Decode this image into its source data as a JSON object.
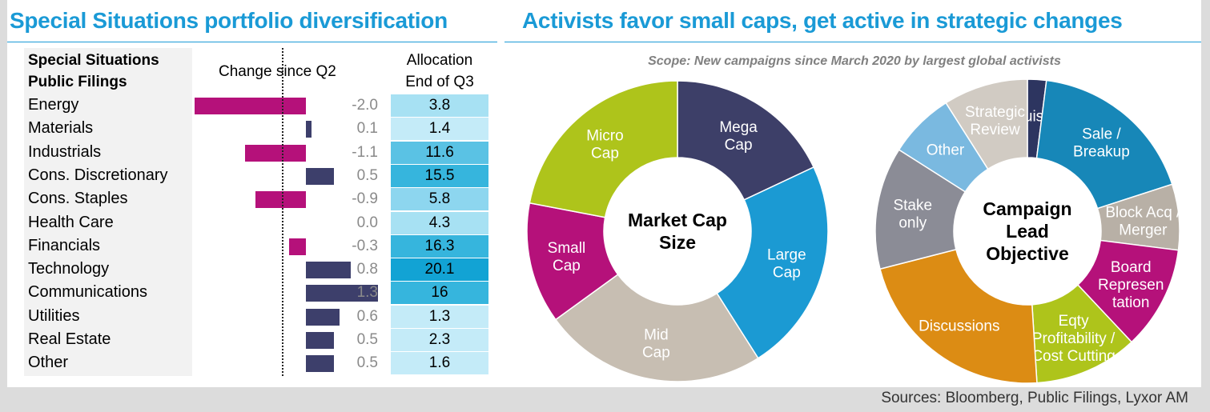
{
  "left_title": "Special Situations portfolio diversification",
  "right_title": "Activists favor small caps, get active in strategic changes",
  "sources": "Sources: Bloomberg, Public Filings, Lyxor AM",
  "colors": {
    "title": "#1a9ad6",
    "negative": "#b5117a",
    "positive": "#3d3f6b"
  },
  "chart_data": [
    {
      "type": "table",
      "headers": {
        "sector": [
          "Special Situations",
          "Public Filings"
        ],
        "change": "Change since Q2",
        "allocation": [
          "Allocation",
          "End of Q3"
        ]
      },
      "rows": [
        {
          "sector": "Energy",
          "change": -2.0,
          "change_label": "-2.0",
          "allocation": "3.8"
        },
        {
          "sector": "Materials",
          "change": 0.1,
          "change_label": "0.1",
          "allocation": "1.4"
        },
        {
          "sector": "Industrials",
          "change": -1.1,
          "change_label": "-1.1",
          "allocation": "11.6"
        },
        {
          "sector": "Cons. Discretionary",
          "change": 0.5,
          "change_label": "0.5",
          "allocation": "15.5"
        },
        {
          "sector": "Cons. Staples",
          "change": -0.9,
          "change_label": "-0.9",
          "allocation": "5.8"
        },
        {
          "sector": "Health Care",
          "change": 0.0,
          "change_label": "0.0",
          "allocation": "4.3"
        },
        {
          "sector": "Financials",
          "change": -0.3,
          "change_label": "-0.3",
          "allocation": "16.3"
        },
        {
          "sector": "Technology",
          "change": 0.8,
          "change_label": "0.8",
          "allocation": "20.1"
        },
        {
          "sector": "Communications",
          "change": 1.3,
          "change_label": "1.3",
          "allocation": "16"
        },
        {
          "sector": "Utilities",
          "change": 0.6,
          "change_label": "0.6",
          "allocation": "1.3"
        },
        {
          "sector": "Real Estate",
          "change": 0.5,
          "change_label": "0.5",
          "allocation": "2.3"
        },
        {
          "sector": "Other",
          "change": 0.5,
          "change_label": "0.5",
          "allocation": "1.6"
        }
      ]
    },
    {
      "type": "pie",
      "subtitle": "Scope: New campaigns since March 2020 by largest global activists",
      "center_label": [
        "Market Cap",
        "Size"
      ],
      "slices": [
        {
          "label": [
            "Mega",
            "Cap"
          ],
          "value": 18,
          "color": "#3d3f68"
        },
        {
          "label": [
            "Large",
            "Cap"
          ],
          "value": 23,
          "color": "#1b9ad3"
        },
        {
          "label": [
            "Mid",
            "Cap"
          ],
          "value": 24,
          "color": "#c7beb2"
        },
        {
          "label": [
            "Small",
            "Cap"
          ],
          "value": 13,
          "color": "#b5117a"
        },
        {
          "label": [
            "Micro",
            "Cap"
          ],
          "value": 22,
          "color": "#aec41b"
        }
      ]
    },
    {
      "type": "pie",
      "center_label": [
        "Campaign",
        "Lead",
        "Objective"
      ],
      "slices": [
        {
          "label": [
            "Acquisition"
          ],
          "value": 2,
          "color": "#2d3560"
        },
        {
          "label": [
            "Sale /",
            "Breakup"
          ],
          "value": 18,
          "color": "#1787b8"
        },
        {
          "label": [
            "Block Acq /",
            "Merger"
          ],
          "value": 7,
          "color": "#b8b0a6"
        },
        {
          "label": [
            "Board",
            "Represen",
            "tation"
          ],
          "value": 11,
          "color": "#b5117a"
        },
        {
          "label": [
            "Eqty",
            "Profitability /",
            "Cost Cutting"
          ],
          "value": 11,
          "color": "#aec41b"
        },
        {
          "label": [
            "Discussions"
          ],
          "value": 22,
          "color": "#dc8c14"
        },
        {
          "label": [
            "Stake",
            "only"
          ],
          "value": 13,
          "color": "#8b8c96"
        },
        {
          "label": [
            "Other"
          ],
          "value": 7,
          "color": "#7ab9e0"
        },
        {
          "label": [
            "Strategic",
            "Review"
          ],
          "value": 9,
          "color": "#d1cbc3"
        }
      ]
    }
  ]
}
